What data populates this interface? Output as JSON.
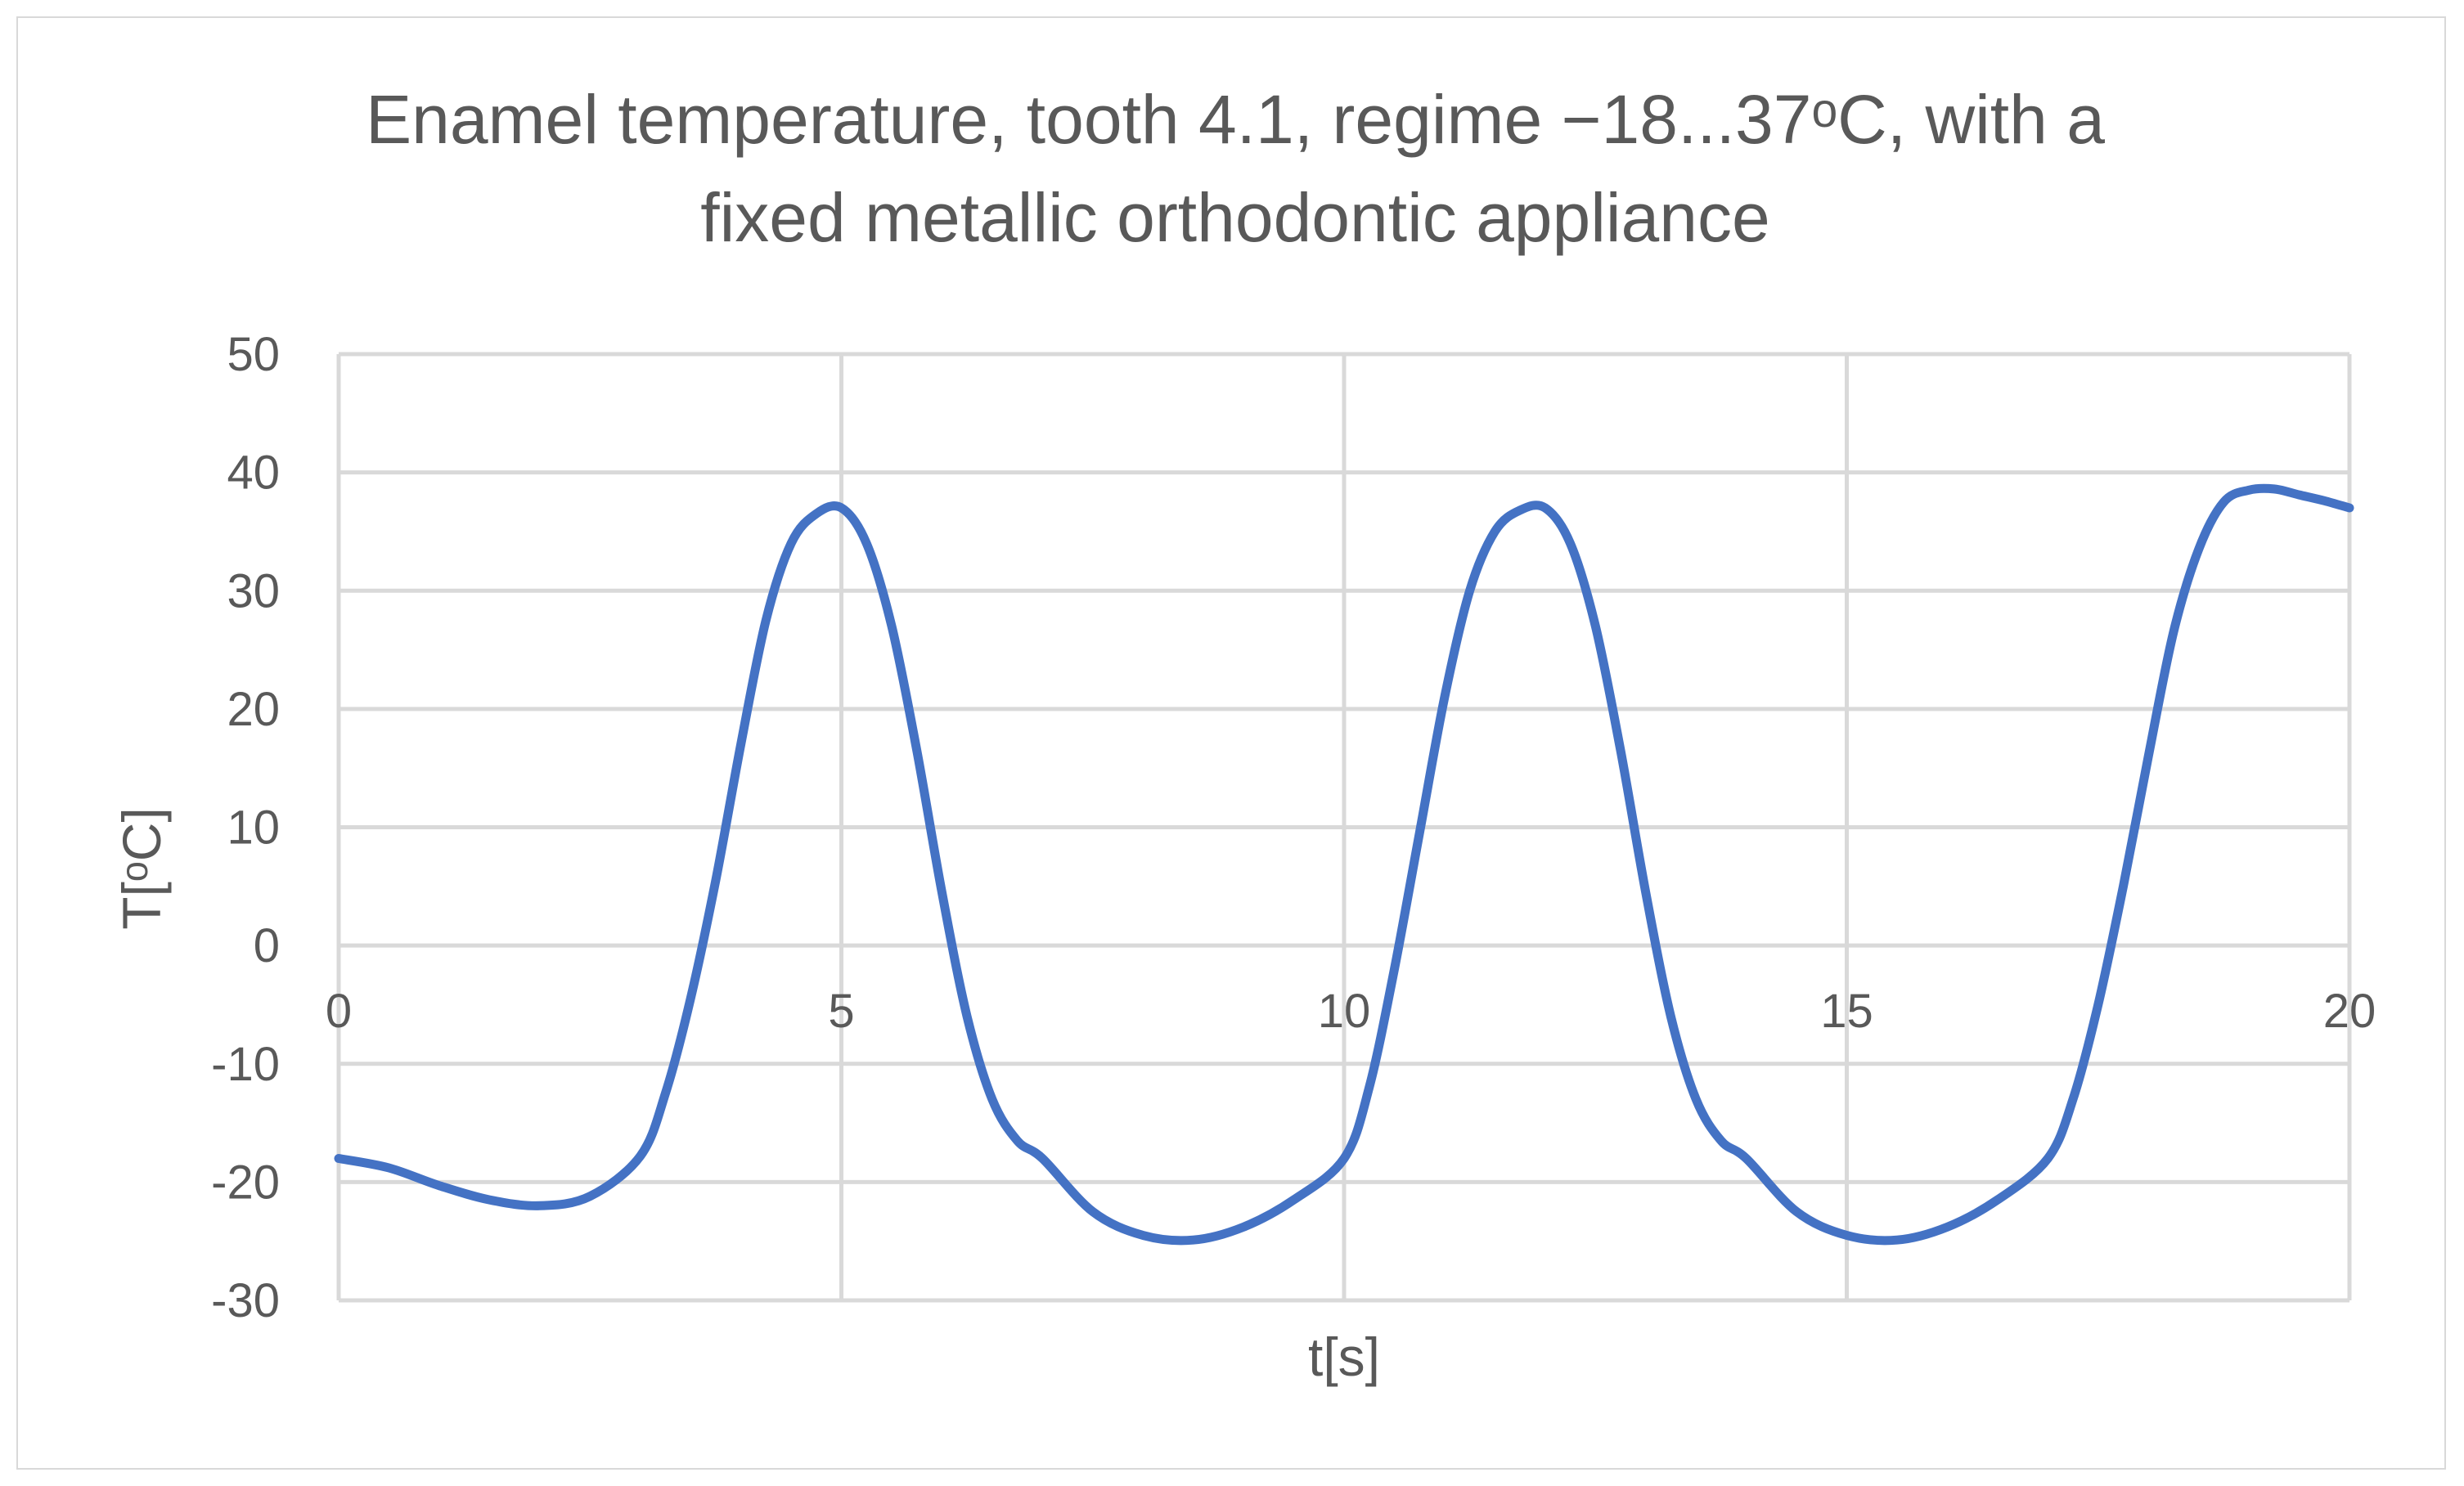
{
  "chart_data": {
    "type": "line",
    "title_lines": [
      "Enamel temperature, tooth 4.1, regime −18...37ᵒC, with a",
      "fixed metallic orthodontic appliance"
    ],
    "xlabel": "t[s]",
    "ylabel": "T[ᵒC]",
    "xlim": [
      0,
      20
    ],
    "ylim": [
      -30,
      50
    ],
    "x_ticks": [
      0,
      5,
      10,
      15,
      20
    ],
    "y_ticks": [
      -30,
      -20,
      -10,
      0,
      10,
      20,
      30,
      40,
      50
    ],
    "x_tick_labels": [
      "0",
      "5",
      "10",
      "15",
      "20"
    ],
    "y_tick_labels": [
      "-30",
      "-20",
      "-10",
      "0",
      "10",
      "20",
      "30",
      "40",
      "50"
    ],
    "grid": true,
    "legend": "none",
    "series_color": "#4472c4",
    "series": [
      {
        "x": [
          0,
          0.5,
          1,
          1.5,
          2,
          2.5,
          3,
          3.25,
          3.5,
          3.75,
          4,
          4.25,
          4.5,
          4.75,
          5,
          5.25,
          5.5,
          5.75,
          6,
          6.25,
          6.5,
          6.75,
          7,
          7.5,
          8,
          8.5,
          9,
          9.5,
          10,
          10.25,
          10.5,
          10.75,
          11,
          11.25,
          11.5,
          11.75,
          12,
          12.25,
          12.5,
          12.75,
          13,
          13.25,
          13.5,
          13.75,
          14,
          14.5,
          15,
          15.5,
          16,
          16.5,
          17,
          17.25,
          17.5,
          17.75,
          18,
          18.25,
          18.5,
          18.75,
          19,
          19.25,
          19.5,
          19.75,
          20
        ],
        "values": [
          -18,
          -18.8,
          -20.3,
          -21.5,
          -22,
          -21.2,
          -17.8,
          -12.5,
          -4.5,
          5.5,
          17,
          27.5,
          34,
          36.5,
          37,
          34,
          27,
          16.5,
          4.5,
          -6,
          -13,
          -16.5,
          -18,
          -22.5,
          -24.5,
          -24.9,
          -23.8,
          -21.5,
          -18,
          -12,
          -2,
          9.5,
          21,
          30,
          35,
          36.8,
          37,
          34,
          27,
          16.5,
          4.5,
          -6,
          -13,
          -16.5,
          -18,
          -22.5,
          -24.5,
          -24.9,
          -23.8,
          -21.5,
          -18,
          -13,
          -5,
          5,
          16,
          26.5,
          33.5,
          37.5,
          38.5,
          38.6,
          38.1,
          37.6,
          37
        ]
      }
    ]
  }
}
